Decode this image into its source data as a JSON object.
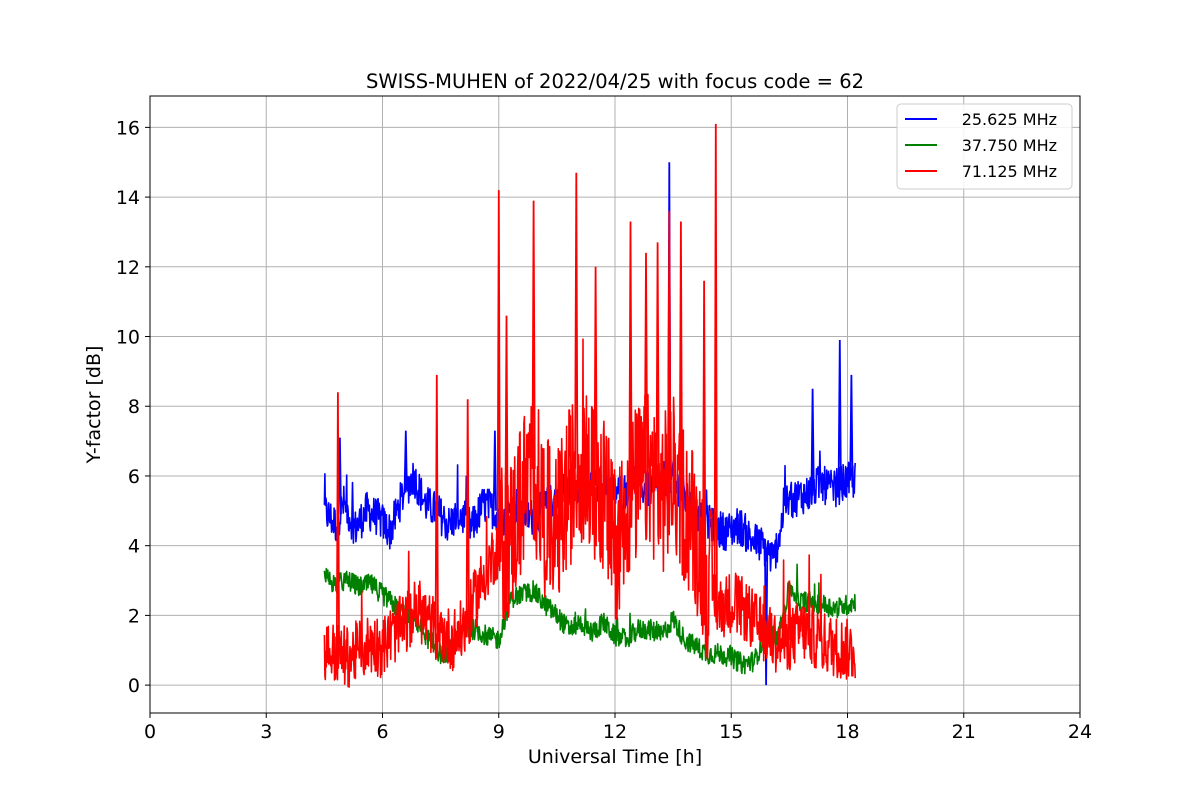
{
  "chart_data": {
    "type": "line",
    "title": "SWISS-MUHEN of 2022/04/25 with focus code = 62",
    "xlabel": "Universal Time [h]",
    "ylabel": "Y-factor [dB]",
    "xlim": [
      0,
      24
    ],
    "ylim": [
      -0.8,
      16.9
    ],
    "xticks": [
      0,
      3,
      6,
      9,
      12,
      15,
      18,
      21,
      24
    ],
    "yticks": [
      0,
      2,
      4,
      6,
      8,
      10,
      12,
      14,
      16
    ],
    "grid": true,
    "legend_position": "top-right",
    "series": [
      {
        "name": "25.625 MHz",
        "color": "#0000ff",
        "points": [
          [
            4.5,
            5.0
          ],
          [
            4.8,
            4.6
          ],
          [
            5.0,
            5.2
          ],
          [
            5.3,
            4.5
          ],
          [
            5.6,
            5.0
          ],
          [
            5.9,
            4.8
          ],
          [
            6.2,
            4.4
          ],
          [
            6.5,
            5.4
          ],
          [
            6.8,
            6.0
          ],
          [
            7.1,
            5.2
          ],
          [
            7.4,
            5.0
          ],
          [
            7.7,
            4.6
          ],
          [
            8.0,
            4.9
          ],
          [
            8.3,
            4.5
          ],
          [
            8.6,
            5.2
          ],
          [
            8.9,
            5.0
          ],
          [
            9.2,
            4.8
          ],
          [
            9.5,
            5.2
          ],
          [
            9.8,
            4.8
          ],
          [
            10.1,
            5.0
          ],
          [
            10.4,
            5.3
          ],
          [
            10.7,
            5.6
          ],
          [
            11.0,
            5.8
          ],
          [
            11.3,
            5.5
          ],
          [
            11.6,
            5.8
          ],
          [
            11.9,
            5.6
          ],
          [
            12.2,
            5.5
          ],
          [
            12.5,
            5.9
          ],
          [
            12.8,
            5.6
          ],
          [
            13.1,
            5.7
          ],
          [
            13.4,
            6.0
          ],
          [
            13.7,
            5.6
          ],
          [
            14.0,
            5.0
          ],
          [
            14.3,
            4.7
          ],
          [
            14.6,
            4.5
          ],
          [
            14.9,
            4.4
          ],
          [
            15.2,
            4.6
          ],
          [
            15.5,
            4.2
          ],
          [
            15.8,
            4.0
          ],
          [
            16.1,
            3.6
          ],
          [
            16.4,
            5.2
          ],
          [
            16.7,
            5.4
          ],
          [
            17.0,
            5.5
          ],
          [
            17.3,
            5.8
          ],
          [
            17.6,
            5.6
          ],
          [
            17.9,
            5.8
          ],
          [
            18.2,
            5.9
          ]
        ],
        "peaks": [
          [
            4.9,
            7.1
          ],
          [
            6.6,
            7.3
          ],
          [
            8.9,
            7.3
          ],
          [
            13.4,
            15.0
          ],
          [
            15.9,
            0.0
          ],
          [
            17.1,
            8.5
          ],
          [
            17.8,
            9.9
          ],
          [
            18.1,
            8.9
          ]
        ]
      },
      {
        "name": "37.750 MHz",
        "color": "#008000",
        "points": [
          [
            4.5,
            3.1
          ],
          [
            4.8,
            2.9
          ],
          [
            5.1,
            3.0
          ],
          [
            5.4,
            2.8
          ],
          [
            5.7,
            2.9
          ],
          [
            6.0,
            2.6
          ],
          [
            6.3,
            2.3
          ],
          [
            6.6,
            2.0
          ],
          [
            6.9,
            1.8
          ],
          [
            7.2,
            1.3
          ],
          [
            7.5,
            0.9
          ],
          [
            7.8,
            1.0
          ],
          [
            8.1,
            1.6
          ],
          [
            8.4,
            1.6
          ],
          [
            8.7,
            1.4
          ],
          [
            9.0,
            1.3
          ],
          [
            9.3,
            2.5
          ],
          [
            9.6,
            2.6
          ],
          [
            9.9,
            2.7
          ],
          [
            10.2,
            2.3
          ],
          [
            10.5,
            2.0
          ],
          [
            10.8,
            1.6
          ],
          [
            11.1,
            1.8
          ],
          [
            11.4,
            1.5
          ],
          [
            11.7,
            1.8
          ],
          [
            12.0,
            1.4
          ],
          [
            12.3,
            1.3
          ],
          [
            12.6,
            1.6
          ],
          [
            12.9,
            1.6
          ],
          [
            13.2,
            1.4
          ],
          [
            13.5,
            1.9
          ],
          [
            13.8,
            1.3
          ],
          [
            14.1,
            1.1
          ],
          [
            14.4,
            0.9
          ],
          [
            14.7,
            0.9
          ],
          [
            15.0,
            0.8
          ],
          [
            15.3,
            0.6
          ],
          [
            15.6,
            0.7
          ],
          [
            15.9,
            1.5
          ],
          [
            16.2,
            1.3
          ],
          [
            16.5,
            2.8
          ],
          [
            16.8,
            2.4
          ],
          [
            17.1,
            2.4
          ],
          [
            17.4,
            2.3
          ],
          [
            17.7,
            2.2
          ],
          [
            18.0,
            2.3
          ],
          [
            18.2,
            2.4
          ]
        ],
        "peaks": []
      },
      {
        "name": "71.125 MHz",
        "color": "#ff0000",
        "points": [
          [
            4.5,
            1.0
          ],
          [
            4.8,
            0.9
          ],
          [
            5.1,
            0.8
          ],
          [
            5.4,
            1.0
          ],
          [
            5.7,
            1.2
          ],
          [
            6.0,
            1.1
          ],
          [
            6.3,
            1.5
          ],
          [
            6.6,
            1.8
          ],
          [
            6.9,
            2.2
          ],
          [
            7.2,
            1.8
          ],
          [
            7.5,
            1.5
          ],
          [
            7.8,
            1.3
          ],
          [
            8.1,
            1.6
          ],
          [
            8.4,
            2.5
          ],
          [
            8.7,
            3.4
          ],
          [
            9.0,
            4.0
          ],
          [
            9.3,
            4.2
          ],
          [
            9.6,
            5.5
          ],
          [
            9.9,
            6.2
          ],
          [
            10.2,
            4.8
          ],
          [
            10.5,
            4.4
          ],
          [
            10.8,
            5.6
          ],
          [
            11.1,
            6.5
          ],
          [
            11.4,
            5.8
          ],
          [
            11.7,
            5.5
          ],
          [
            12.0,
            4.0
          ],
          [
            12.3,
            5.2
          ],
          [
            12.6,
            5.8
          ],
          [
            12.9,
            6.2
          ],
          [
            13.2,
            5.4
          ],
          [
            13.5,
            6.0
          ],
          [
            13.8,
            5.2
          ],
          [
            14.1,
            4.4
          ],
          [
            14.4,
            3.0
          ],
          [
            14.7,
            2.2
          ],
          [
            15.0,
            2.4
          ],
          [
            15.3,
            2.2
          ],
          [
            15.6,
            1.8
          ],
          [
            15.9,
            1.5
          ],
          [
            16.2,
            1.2
          ],
          [
            16.5,
            1.3
          ],
          [
            16.8,
            1.6
          ],
          [
            17.1,
            1.4
          ],
          [
            17.4,
            1.2
          ],
          [
            17.7,
            1.1
          ],
          [
            18.0,
            1.0
          ],
          [
            18.2,
            1.0
          ]
        ],
        "peaks": [
          [
            4.85,
            8.4
          ],
          [
            7.4,
            8.9
          ],
          [
            8.2,
            8.2
          ],
          [
            9.0,
            14.2
          ],
          [
            9.2,
            10.6
          ],
          [
            9.9,
            13.9
          ],
          [
            11.0,
            14.7
          ],
          [
            11.5,
            12.0
          ],
          [
            12.4,
            13.3
          ],
          [
            12.8,
            12.4
          ],
          [
            13.1,
            12.7
          ],
          [
            13.4,
            13.6
          ],
          [
            13.7,
            13.3
          ],
          [
            14.3,
            11.6
          ],
          [
            14.6,
            16.1
          ],
          [
            16.5,
            3.0
          ]
        ]
      }
    ]
  }
}
